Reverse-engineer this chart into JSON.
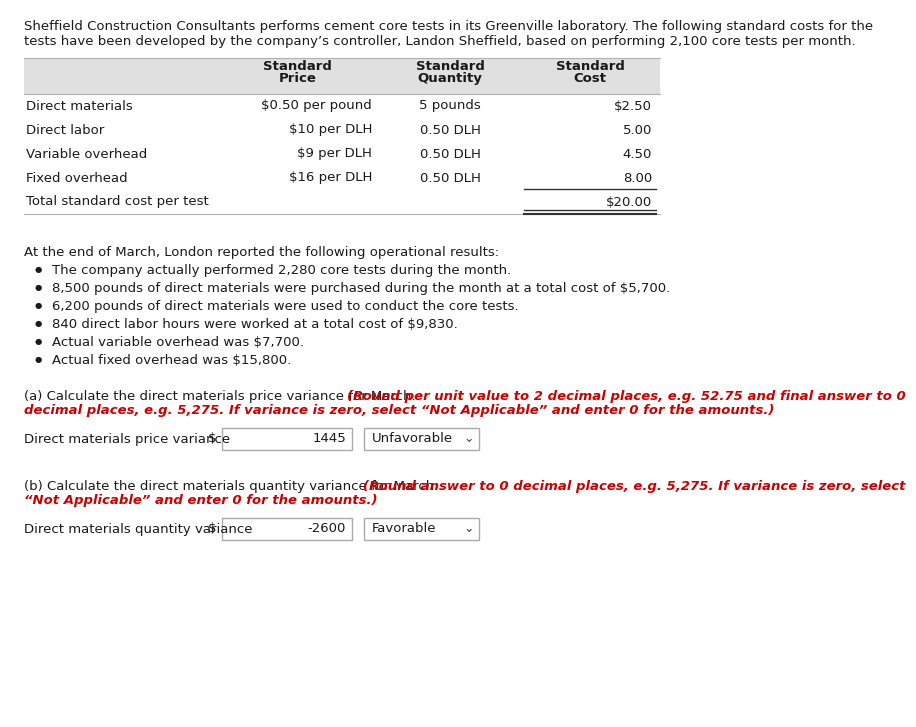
{
  "intro_line1": "Sheffield Construction Consultants performs cement core tests in its Greenville laboratory. The following standard costs for the",
  "intro_line2": "tests have been developed by the company’s controller, Landon Sheffield, based on performing 2,100 core tests per month.",
  "table_header_col1": "",
  "table_header_col2": "Standard Price",
  "table_header_col3_line1": "Standard",
  "table_header_col3_line2": "Quantity",
  "table_header_col4_line1": "Standard",
  "table_header_col4_line2": "Cost",
  "table_rows": [
    [
      "Direct materials",
      "$0.50 per pound",
      "5 pounds",
      "$2.50"
    ],
    [
      "Direct labor",
      "$10 per DLH",
      "0.50 DLH",
      "5.00"
    ],
    [
      "Variable overhead",
      "$9 per DLH",
      "0.50 DLH",
      "4.50"
    ],
    [
      "Fixed overhead",
      "$16 per DLH",
      "0.50 DLH",
      "8.00"
    ],
    [
      "Total standard cost per test",
      "",
      "",
      "$20.00"
    ]
  ],
  "op_header": "At the end of March, London reported the following operational results:",
  "bullets": [
    "The company actually performed 2,280 core tests during the month.",
    "8,500 pounds of direct materials were purchased during the month at a total cost of $5,700.",
    "6,200 pounds of direct materials were used to conduct the core tests.",
    "840 direct labor hours were worked at a total cost of $9,830.",
    "Actual variable overhead was $7,700.",
    "Actual fixed overhead was $15,800."
  ],
  "part_a_black": "(a) Calculate the direct materials price variance for March. ",
  "part_a_red": "(Round per unit value to 2 decimal places, e.g. 52.75 and final answer to 0",
  "part_a_red2": "decimal places, e.g. 5,275. If variance is zero, select “Not Applicable” and enter 0 for the amounts.)",
  "part_a_label": "Direct materials price variance",
  "part_a_value": "1445",
  "part_a_dropdown": "Unfavorable",
  "part_b_black": "(b) Calculate the direct materials quantity variance for March. ",
  "part_b_red": "(Round answer to 0 decimal places, e.g. 5,275. If variance is zero, select",
  "part_b_red2": "“Not Applicable” and enter 0 for the amounts.)",
  "part_b_label": "Direct materials quantity variance",
  "part_b_value": "-2600",
  "part_b_dropdown": "Favorable",
  "bg_color": "#ffffff",
  "text_color": "#1a1a1a",
  "red_color": "#cc0000",
  "gray_header_bg": "#e0e0e0",
  "fs": 9.5,
  "fs_bullet": 9.5,
  "figw": 8.76,
  "figh": 7.07
}
